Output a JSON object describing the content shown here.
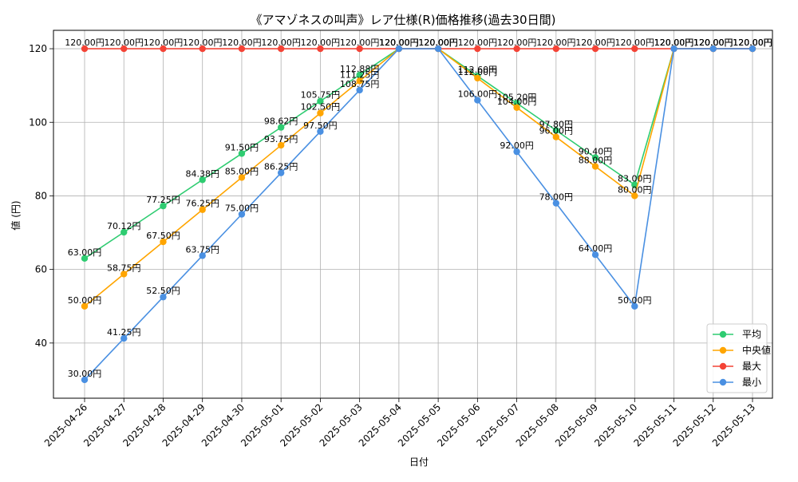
{
  "chart_data": {
    "type": "line",
    "title": "《アマゾネスの叫声》レア仕様(R)価格推移(過去30日間)",
    "xlabel": "日付",
    "ylabel": "値 (円)",
    "ylim": [
      25,
      125
    ],
    "yticks": [
      40,
      60,
      80,
      100,
      120
    ],
    "grid": true,
    "legend_position": "bottom-right",
    "value_suffix": "円",
    "categories": [
      "2025-04-26",
      "2025-04-27",
      "2025-04-28",
      "2025-04-29",
      "2025-04-30",
      "2025-05-01",
      "2025-05-02",
      "2025-05-03",
      "2025-05-04",
      "2025-05-05",
      "2025-05-06",
      "2025-05-07",
      "2025-05-08",
      "2025-05-09",
      "2025-05-10",
      "2025-05-11",
      "2025-05-12",
      "2025-05-13"
    ],
    "series": [
      {
        "name": "平均",
        "color": "#2ecc71",
        "values": [
          63.0,
          70.12,
          77.25,
          84.38,
          91.5,
          98.62,
          105.75,
          112.88,
          120.0,
          120.0,
          112.6,
          105.2,
          97.8,
          90.4,
          83.0,
          120.0,
          120.0,
          120.0
        ]
      },
      {
        "name": "中央値",
        "color": "#ffa500",
        "values": [
          50.0,
          58.75,
          67.5,
          76.25,
          85.0,
          93.75,
          102.5,
          111.25,
          120.0,
          120.0,
          112.0,
          104.0,
          96.0,
          88.0,
          80.0,
          120.0,
          120.0,
          120.0
        ]
      },
      {
        "name": "最大",
        "color": "#f44336",
        "values": [
          120.0,
          120.0,
          120.0,
          120.0,
          120.0,
          120.0,
          120.0,
          120.0,
          120.0,
          120.0,
          120.0,
          120.0,
          120.0,
          120.0,
          120.0,
          120.0,
          120.0,
          120.0
        ]
      },
      {
        "name": "最小",
        "color": "#4a90e2",
        "values": [
          30.0,
          41.25,
          52.5,
          63.75,
          75.0,
          86.25,
          97.5,
          108.75,
          120.0,
          120.0,
          106.0,
          92.0,
          78.0,
          64.0,
          50.0,
          120.0,
          120.0,
          120.0
        ]
      }
    ]
  }
}
